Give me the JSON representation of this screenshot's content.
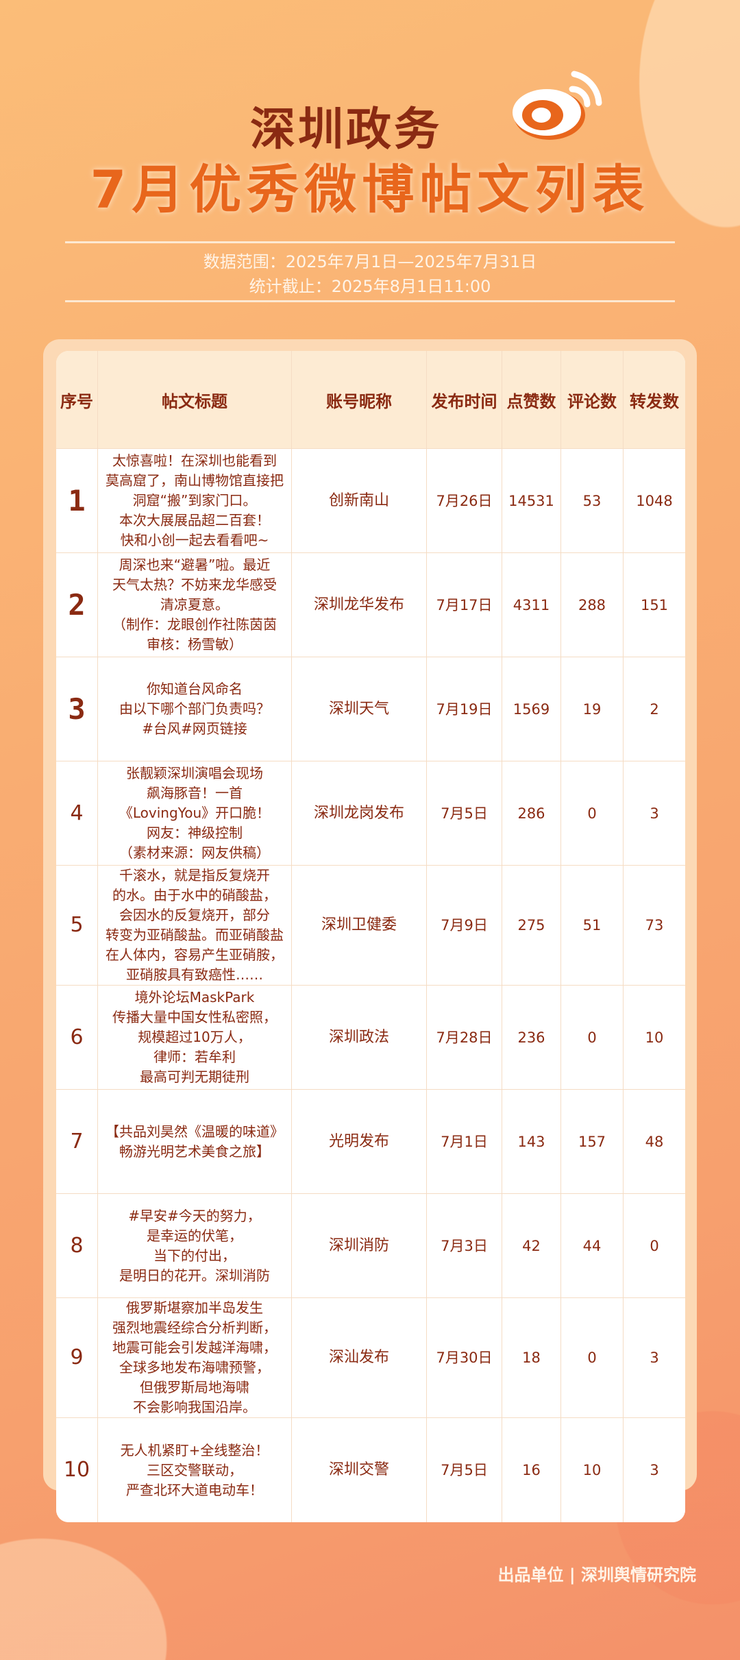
{
  "header": {
    "title_line1": "深圳政务",
    "title_line2": "7月优秀微博帖文列表",
    "data_range": "数据范围：2025年7月1日—2025年7月31日",
    "cutoff": "统计截止：2025年8月1日11:00",
    "logo_icon": "weibo-logo-icon"
  },
  "colors": {
    "title_dark": "#8a2a12",
    "title_orange": "#e8661c",
    "background": "#f9ad72"
  },
  "table": {
    "columns": [
      "序号",
      "帖文标题",
      "账号昵称",
      "发布时间",
      "点赞数",
      "评论数",
      "转发数"
    ],
    "rows": [
      {
        "rank": "1",
        "title": "太惊喜啦！在深圳也能看到\n莫高窟了，南山博物馆直接把\n洞窟“搬”到家门口。\n本次大展展品超二百套！\n快和小创一起去看看吧~",
        "account": "创新南山",
        "date": "7月26日",
        "likes": "14531",
        "comments": "53",
        "reposts": "1048"
      },
      {
        "rank": "2",
        "title": "周深也来“避暑”啦。最近\n天气太热？不妨来龙华感受\n清凉夏意。\n（制作：龙眼创作社陈茵茵\n审核：杨雪敏）",
        "account": "深圳龙华发布",
        "date": "7月17日",
        "likes": "4311",
        "comments": "288",
        "reposts": "151"
      },
      {
        "rank": "3",
        "title": "你知道台风命名\n由以下哪个部门负责吗？\n#台风#网页链接",
        "account": "深圳天气",
        "date": "7月19日",
        "likes": "1569",
        "comments": "19",
        "reposts": "2"
      },
      {
        "rank": "4",
        "title": "张靓颖深圳演唱会现场\n飙海豚音！一首\n《LovingYou》开口脆！\n网友：神级控制\n（素材来源：网友供稿）",
        "account": "深圳龙岗发布",
        "date": "7月5日",
        "likes": "286",
        "comments": "0",
        "reposts": "3"
      },
      {
        "rank": "5",
        "title": "千滚水，就是指反复烧开\n的水。由于水中的硝酸盐，\n会因水的反复烧开，部分\n转变为亚硝酸盐。而亚硝酸盐\n在人体内，容易产生亚硝胺，\n亚硝胺具有致癌性……",
        "account": "深圳卫健委",
        "date": "7月9日",
        "likes": "275",
        "comments": "51",
        "reposts": "73"
      },
      {
        "rank": "6",
        "title": "境外论坛MaskPark\n传播大量中国女性私密照，\n规模超过10万人，\n律师：若牟利\n最高可判无期徒刑",
        "account": "深圳政法",
        "date": "7月28日",
        "likes": "236",
        "comments": "0",
        "reposts": "10"
      },
      {
        "rank": "7",
        "title": "【共品刘昊然《温暖的味道》\n畅游光明艺术美食之旅】",
        "account": "光明发布",
        "date": "7月1日",
        "likes": "143",
        "comments": "157",
        "reposts": "48"
      },
      {
        "rank": "8",
        "title": "#早安#今天的努力，\n是幸运的伏笔，\n当下的付出，\n是明日的花开。深圳消防",
        "account": "深圳消防",
        "date": "7月3日",
        "likes": "42",
        "comments": "44",
        "reposts": "0"
      },
      {
        "rank": "9",
        "title": "俄罗斯堪察加半岛发生\n强烈地震经综合分析判断，\n地震可能会引发越洋海啸，\n全球多地发布海啸预警，\n但俄罗斯局地海啸\n不会影响我国沿岸。",
        "account": "深汕发布",
        "date": "7月30日",
        "likes": "18",
        "comments": "0",
        "reposts": "3"
      },
      {
        "rank": "10",
        "title": "无人机紧盯+全线整治！\n三区交警联动，\n严查北环大道电动车！",
        "account": "深圳交警",
        "date": "7月5日",
        "likes": "16",
        "comments": "10",
        "reposts": "3"
      }
    ]
  },
  "footer": {
    "producer": "出品单位 | 深圳舆情研究院"
  }
}
